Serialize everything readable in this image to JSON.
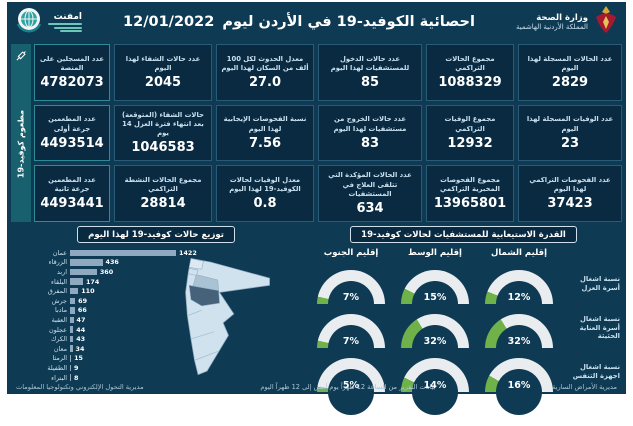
{
  "header": {
    "title": "احصائية الكوفيد-19 في الأردن ليوم",
    "date": "12/01/2022",
    "ministry_name": "وزارة الصحة",
    "ministry_country": "المملكة الأردنية الهاشمية",
    "logo_text": "امفنت"
  },
  "colors": {
    "canvas": "#0E3A53",
    "box": "#0A2A41",
    "sidebar_teal": "#19606F",
    "bar": "#8FA9C0",
    "gauge_fill": "#6FB24A",
    "gauge_track": "#E9EDEF",
    "map_light": "#CFE2EE",
    "map_dark": "#46627A",
    "crest_red": "#A6192E"
  },
  "stats": {
    "columns": [
      {
        "boxes": [
          {
            "label": "عدد الحالات المسجلة لهذا اليوم",
            "value": "2829"
          },
          {
            "label": "عدد الوفيات المسجلة لهذا اليوم",
            "value": "23"
          },
          {
            "label": "عدد الفحوصات التراكمي لهذا اليوم",
            "value": "37423"
          }
        ]
      },
      {
        "boxes": [
          {
            "label": "مجموع الحالات التراكمي",
            "value": "1088329"
          },
          {
            "label": "مجموع الوفيات التراكمي",
            "value": "12932"
          },
          {
            "label": "مجموع الفحوصات المخبرية التراكمي",
            "value": "13965801"
          }
        ]
      },
      {
        "boxes": [
          {
            "label": "عدد حالات الدخول للمستشفيات لهذا اليوم",
            "value": "85"
          },
          {
            "label": "عدد حالات الخروج من مستشفيات لهذا اليوم",
            "value": "83"
          },
          {
            "label": "عدد الحالات المؤكدة التي تتلقى العلاج في المستشفيات",
            "value": "634"
          }
        ]
      },
      {
        "boxes": [
          {
            "label": "معدل الحدوث لكل 100 ألف من السكان لهذا اليوم",
            "value": "27.0"
          },
          {
            "label": "نسبة الفحوصات الإيجابية لهذا اليوم",
            "value": "7.56"
          },
          {
            "label": "معدل الوفيات لحالات الكوفيد-19 لهذا اليوم",
            "value": "0.8"
          }
        ]
      },
      {
        "boxes": [
          {
            "label": "عدد حالات الشفاء لهذا اليوم",
            "value": "2045"
          },
          {
            "label": "حالات الشفاء (المتوقعة) بعد انتهاء فترة العزل 14 يوم",
            "value": "1046583"
          },
          {
            "label": "مجموع الحالات النشطة التراكمي",
            "value": "28814"
          }
        ]
      }
    ]
  },
  "vaccination": {
    "sidebar_label": "مطعوم كوفيد-19",
    "boxes": [
      {
        "label": "عدد المسجلين على المنصة",
        "value": "4782073"
      },
      {
        "label": "عدد المطعمين جرعة أولى",
        "value": "4493514"
      },
      {
        "label": "عدد المطعمين جرعة ثانية",
        "value": "4493441"
      }
    ]
  },
  "chart_data": [
    {
      "type": "bar",
      "orientation": "horizontal",
      "title": "توزيع حالات كوفيد-19 لهذا اليوم",
      "categories": [
        "عمان",
        "الزرقاء",
        "اربد",
        "البلقاء",
        "المفرق",
        "جرش",
        "مادبا",
        "العقبة",
        "عجلون",
        "الكرك",
        "معان",
        "الرمثا",
        "الطفيلة",
        "البتراء"
      ],
      "values": [
        1422,
        436,
        360,
        174,
        110,
        69,
        66,
        47,
        44,
        43,
        34,
        15,
        9,
        8
      ],
      "xlim": [
        0,
        1422
      ]
    },
    {
      "type": "gauge-grid",
      "title": "القدرة الاستيعابية للمستشفيات لحالات كوفيد-19",
      "columns": [
        "إقليم الشمال",
        "إقليم الوسط",
        "إقليم الجنوب"
      ],
      "rows": [
        "نسبة اشغال أسرة العزل",
        "نسبة اشغال أسرة العناية الحثيثة",
        "نسبة اشغال اجهزة التنفس"
      ],
      "values": [
        [
          12,
          15,
          7
        ],
        [
          32,
          32,
          7
        ],
        [
          16,
          14,
          5
        ]
      ],
      "unit": "%",
      "range": [
        0,
        100
      ]
    }
  ],
  "footer": {
    "left": "مديرية التحول الإلكتروني وتكنولوجيا المعلومات",
    "center": "بيانات التقرير من الساعة 12 ظهراً يوم أمس إلى 12 ظهراً اليوم",
    "right": "مديرية الأمراض السارية"
  }
}
